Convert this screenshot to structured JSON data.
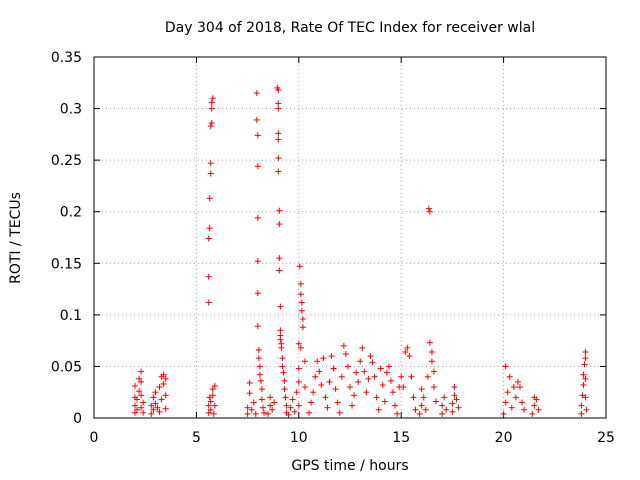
{
  "chart_data": {
    "type": "scatter",
    "title": "Day 304 of 2018, Rate Of TEC Index for receiver wlal",
    "xlabel": "GPS time / hours",
    "ylabel": "ROTI / TECUs",
    "xlim": [
      0,
      25
    ],
    "ylim": [
      0,
      0.35
    ],
    "x_ticks": [
      0,
      5,
      10,
      15,
      20,
      25
    ],
    "x_tick_labels": [
      "0",
      "5",
      "10",
      "15",
      "20",
      "25"
    ],
    "y_ticks": [
      0,
      0.05,
      0.1,
      0.15,
      0.2,
      0.25,
      0.3,
      0.35
    ],
    "y_tick_labels": [
      "0",
      "0.05",
      "0.1",
      "0.15",
      "0.2",
      "0.25",
      "0.3",
      "0.35"
    ],
    "grid": true,
    "marker": "+",
    "color": "#ff0000",
    "series": [
      {
        "name": "ROTI",
        "points": [
          [
            2.0,
            0.005
          ],
          [
            2.0,
            0.012
          ],
          [
            2.0,
            0.02
          ],
          [
            2.0,
            0.031
          ],
          [
            2.1,
            0.008
          ],
          [
            2.1,
            0.018
          ],
          [
            2.2,
            0.026
          ],
          [
            2.2,
            0.038
          ],
          [
            2.3,
            0.045
          ],
          [
            2.3,
            0.035
          ],
          [
            2.3,
            0.022
          ],
          [
            2.3,
            0.01
          ],
          [
            2.4,
            0.015
          ],
          [
            2.4,
            0.005
          ],
          [
            2.8,
            0.004
          ],
          [
            2.8,
            0.012
          ],
          [
            2.9,
            0.02
          ],
          [
            2.9,
            0.008
          ],
          [
            3.0,
            0.014
          ],
          [
            3.0,
            0.025
          ],
          [
            3.1,
            0.01
          ],
          [
            3.2,
            0.03
          ],
          [
            3.2,
            0.006
          ],
          [
            3.3,
            0.04
          ],
          [
            3.3,
            0.018
          ],
          [
            3.4,
            0.042
          ],
          [
            3.4,
            0.033
          ],
          [
            3.5,
            0.038
          ],
          [
            3.5,
            0.022
          ],
          [
            3.5,
            0.009
          ],
          [
            5.6,
            0.112
          ],
          [
            5.6,
            0.137
          ],
          [
            5.6,
            0.174
          ],
          [
            5.65,
            0.184
          ],
          [
            5.65,
            0.213
          ],
          [
            5.7,
            0.237
          ],
          [
            5.7,
            0.247
          ],
          [
            5.7,
            0.283
          ],
          [
            5.75,
            0.286
          ],
          [
            5.75,
            0.3
          ],
          [
            5.75,
            0.306
          ],
          [
            5.8,
            0.31
          ],
          [
            5.6,
            0.005
          ],
          [
            5.6,
            0.012
          ],
          [
            5.65,
            0.02
          ],
          [
            5.7,
            0.008
          ],
          [
            5.7,
            0.016
          ],
          [
            5.8,
            0.028
          ],
          [
            5.8,
            0.022
          ],
          [
            5.9,
            0.031
          ],
          [
            5.9,
            0.012
          ],
          [
            5.85,
            0.004
          ],
          [
            7.5,
            0.01
          ],
          [
            7.5,
            0.004
          ],
          [
            7.6,
            0.024
          ],
          [
            7.6,
            0.034
          ],
          [
            7.7,
            0.008
          ],
          [
            7.8,
            0.015
          ],
          [
            7.9,
            0.004
          ],
          [
            7.95,
            0.315
          ],
          [
            7.95,
            0.289
          ],
          [
            8.0,
            0.274
          ],
          [
            8.0,
            0.244
          ],
          [
            8.0,
            0.194
          ],
          [
            8.0,
            0.152
          ],
          [
            8.0,
            0.121
          ],
          [
            8.0,
            0.089
          ],
          [
            8.05,
            0.066
          ],
          [
            8.05,
            0.058
          ],
          [
            8.1,
            0.05
          ],
          [
            8.1,
            0.042
          ],
          [
            8.15,
            0.036
          ],
          [
            8.2,
            0.028
          ],
          [
            8.2,
            0.018
          ],
          [
            8.25,
            0.01
          ],
          [
            8.3,
            0.005
          ],
          [
            8.5,
            0.004
          ],
          [
            8.6,
            0.012
          ],
          [
            8.6,
            0.02
          ],
          [
            8.7,
            0.008
          ],
          [
            8.8,
            0.015
          ],
          [
            8.95,
            0.32
          ],
          [
            9.0,
            0.318
          ],
          [
            9.0,
            0.305
          ],
          [
            9.0,
            0.3
          ],
          [
            9.0,
            0.276
          ],
          [
            9.0,
            0.27
          ],
          [
            9.0,
            0.252
          ],
          [
            9.0,
            0.239
          ],
          [
            9.05,
            0.201
          ],
          [
            9.05,
            0.188
          ],
          [
            9.05,
            0.155
          ],
          [
            9.05,
            0.143
          ],
          [
            9.1,
            0.108
          ],
          [
            9.1,
            0.085
          ],
          [
            9.1,
            0.08
          ],
          [
            9.1,
            0.076
          ],
          [
            9.15,
            0.072
          ],
          [
            9.15,
            0.068
          ],
          [
            9.2,
            0.058
          ],
          [
            9.2,
            0.05
          ],
          [
            9.25,
            0.044
          ],
          [
            9.3,
            0.036
          ],
          [
            9.3,
            0.028
          ],
          [
            9.35,
            0.02
          ],
          [
            9.4,
            0.012
          ],
          [
            9.4,
            0.005
          ],
          [
            9.5,
            0.003
          ],
          [
            9.6,
            0.01
          ],
          [
            9.7,
            0.018
          ],
          [
            9.8,
            0.006
          ],
          [
            9.9,
            0.025
          ],
          [
            10.0,
            0.012
          ],
          [
            10.0,
            0.035
          ],
          [
            10.05,
            0.147
          ],
          [
            10.1,
            0.13
          ],
          [
            10.1,
            0.12
          ],
          [
            10.15,
            0.112
          ],
          [
            10.15,
            0.104
          ],
          [
            10.2,
            0.096
          ],
          [
            10.2,
            0.088
          ],
          [
            10.0,
            0.072
          ],
          [
            10.1,
            0.068
          ],
          [
            10.0,
            0.048
          ],
          [
            10.3,
            0.055
          ],
          [
            10.3,
            0.03
          ],
          [
            10.5,
            0.005
          ],
          [
            10.6,
            0.015
          ],
          [
            10.7,
            0.025
          ],
          [
            10.8,
            0.04
          ],
          [
            10.9,
            0.055
          ],
          [
            11.0,
            0.045
          ],
          [
            11.1,
            0.032
          ],
          [
            11.2,
            0.058
          ],
          [
            11.3,
            0.02
          ],
          [
            11.4,
            0.01
          ],
          [
            11.5,
            0.035
          ],
          [
            11.6,
            0.06
          ],
          [
            11.7,
            0.048
          ],
          [
            11.8,
            0.028
          ],
          [
            11.9,
            0.015
          ],
          [
            12.0,
            0.005
          ],
          [
            12.1,
            0.04
          ],
          [
            12.2,
            0.07
          ],
          [
            12.3,
            0.062
          ],
          [
            12.4,
            0.05
          ],
          [
            12.5,
            0.03
          ],
          [
            12.6,
            0.012
          ],
          [
            12.7,
            0.022
          ],
          [
            12.8,
            0.044
          ],
          [
            12.9,
            0.035
          ],
          [
            13.0,
            0.055
          ],
          [
            13.1,
            0.068
          ],
          [
            13.2,
            0.045
          ],
          [
            13.3,
            0.025
          ],
          [
            13.4,
            0.038
          ],
          [
            13.5,
            0.06
          ],
          [
            13.6,
            0.054
          ],
          [
            13.7,
            0.04
          ],
          [
            13.8,
            0.02
          ],
          [
            13.9,
            0.008
          ],
          [
            14.0,
            0.048
          ],
          [
            14.1,
            0.032
          ],
          [
            14.2,
            0.016
          ],
          [
            14.3,
            0.044
          ],
          [
            14.4,
            0.05
          ],
          [
            14.5,
            0.036
          ],
          [
            14.6,
            0.025
          ],
          [
            14.7,
            0.012
          ],
          [
            14.8,
            0.004
          ],
          [
            14.9,
            0.03
          ],
          [
            15.0,
            0.04
          ],
          [
            15.1,
            0.03
          ],
          [
            15.2,
            0.064
          ],
          [
            15.3,
            0.068
          ],
          [
            15.4,
            0.06
          ],
          [
            15.5,
            0.04
          ],
          [
            15.6,
            0.02
          ],
          [
            15.7,
            0.008
          ],
          [
            15.9,
            0.004
          ],
          [
            16.0,
            0.028
          ],
          [
            16.0,
            0.012
          ],
          [
            16.1,
            0.02
          ],
          [
            16.2,
            0.008
          ],
          [
            16.3,
            0.04
          ],
          [
            16.35,
            0.203
          ],
          [
            16.4,
            0.2
          ],
          [
            16.4,
            0.073
          ],
          [
            16.5,
            0.064
          ],
          [
            16.5,
            0.055
          ],
          [
            16.6,
            0.045
          ],
          [
            16.6,
            0.03
          ],
          [
            16.7,
            0.016
          ],
          [
            17.0,
            0.004
          ],
          [
            17.0,
            0.012
          ],
          [
            17.1,
            0.02
          ],
          [
            17.2,
            0.008
          ],
          [
            17.5,
            0.006
          ],
          [
            17.5,
            0.014
          ],
          [
            17.6,
            0.022
          ],
          [
            17.6,
            0.03
          ],
          [
            17.7,
            0.018
          ],
          [
            17.8,
            0.01
          ],
          [
            20.1,
            0.05
          ],
          [
            20.0,
            0.004
          ],
          [
            20.1,
            0.015
          ],
          [
            20.2,
            0.025
          ],
          [
            20.3,
            0.04
          ],
          [
            20.4,
            0.01
          ],
          [
            20.5,
            0.03
          ],
          [
            20.6,
            0.02
          ],
          [
            20.7,
            0.035
          ],
          [
            20.8,
            0.03
          ],
          [
            20.9,
            0.015
          ],
          [
            21.0,
            0.008
          ],
          [
            21.4,
            0.004
          ],
          [
            21.5,
            0.012
          ],
          [
            21.5,
            0.02
          ],
          [
            21.6,
            0.018
          ],
          [
            21.7,
            0.008
          ],
          [
            23.8,
            0.004
          ],
          [
            23.8,
            0.012
          ],
          [
            23.85,
            0.022
          ],
          [
            23.9,
            0.032
          ],
          [
            23.9,
            0.042
          ],
          [
            23.95,
            0.052
          ],
          [
            24.0,
            0.064
          ],
          [
            24.0,
            0.058
          ],
          [
            24.0,
            0.038
          ],
          [
            24.0,
            0.02
          ],
          [
            24.05,
            0.008
          ]
        ]
      }
    ]
  }
}
